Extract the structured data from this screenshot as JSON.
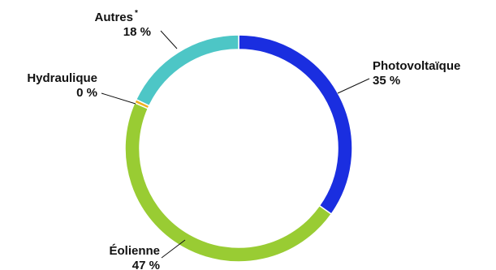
{
  "chart_data": {
    "type": "donut",
    "title": "",
    "slices": [
      {
        "name": "Photovoltaïque",
        "value": 35,
        "label_value": "35 %",
        "color": "#1a2ee0"
      },
      {
        "name": "Éolienne",
        "value": 47,
        "label_value": "47 %",
        "color": "#99cc33"
      },
      {
        "name": "Hydraulique",
        "value": 0.5,
        "label_value": "0 %",
        "color": "#f0b020"
      },
      {
        "name": "Autres",
        "value": 18,
        "label_value": "18 %",
        "color": "#4dc6c6",
        "footnote_mark": "*"
      }
    ],
    "start": "top",
    "direction": "clockwise"
  }
}
